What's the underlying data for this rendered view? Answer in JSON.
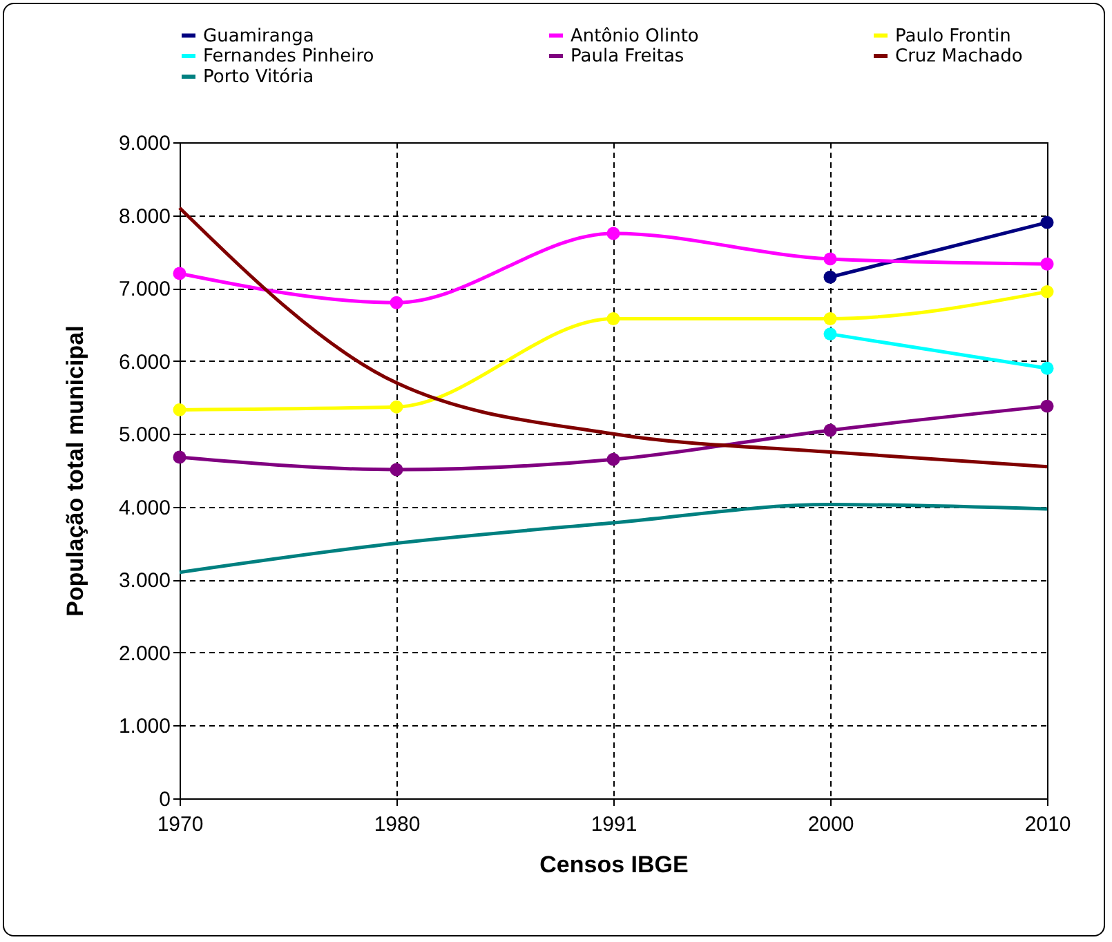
{
  "chart_data": {
    "type": "line",
    "xlabel": "Censos IBGE",
    "ylabel": "População total municipal",
    "categories": [
      "1970",
      "1980",
      "1991",
      "2000",
      "2010"
    ],
    "series": [
      {
        "name": "Guamiranga",
        "color": "#000080",
        "marker": "circle",
        "values": [
          null,
          null,
          null,
          7150,
          7900
        ]
      },
      {
        "name": "Antônio Olinto",
        "color": "#ff00ff",
        "marker": "circle",
        "values": [
          7200,
          6800,
          7750,
          7400,
          7330
        ]
      },
      {
        "name": "Paulo Frontin",
        "color": "#ffff00",
        "marker": "circle",
        "values": [
          5330,
          5370,
          6580,
          6580,
          6950
        ]
      },
      {
        "name": "Fernandes Pinheiro",
        "color": "#00ffff",
        "marker": "circle",
        "values": [
          null,
          null,
          null,
          6370,
          5900
        ]
      },
      {
        "name": "Paula Freitas",
        "color": "#800080",
        "marker": "circle",
        "values": [
          4680,
          4510,
          4650,
          5050,
          5380
        ]
      },
      {
        "name": "Cruz Machado",
        "color": "#800000",
        "marker": "none",
        "values": [
          8100,
          5700,
          5000,
          4750,
          4550
        ]
      },
      {
        "name": "Porto Vitória",
        "color": "#008080",
        "marker": "none",
        "values": [
          3100,
          3500,
          3780,
          4030,
          3970
        ]
      }
    ],
    "ylim": [
      0,
      9000
    ],
    "yticks": [
      {
        "value": 0,
        "label": "0"
      },
      {
        "value": 1000,
        "label": "1.000"
      },
      {
        "value": 2000,
        "label": "2.000"
      },
      {
        "value": 3000,
        "label": "3.000"
      },
      {
        "value": 4000,
        "label": "4.000"
      },
      {
        "value": 5000,
        "label": "5.000"
      },
      {
        "value": 6000,
        "label": "6.000"
      },
      {
        "value": 7000,
        "label": "7.000"
      },
      {
        "value": 8000,
        "label": "8.000"
      },
      {
        "value": 9000,
        "label": "9.000"
      }
    ],
    "grid": true,
    "legend": "top",
    "line_style": "solid"
  }
}
